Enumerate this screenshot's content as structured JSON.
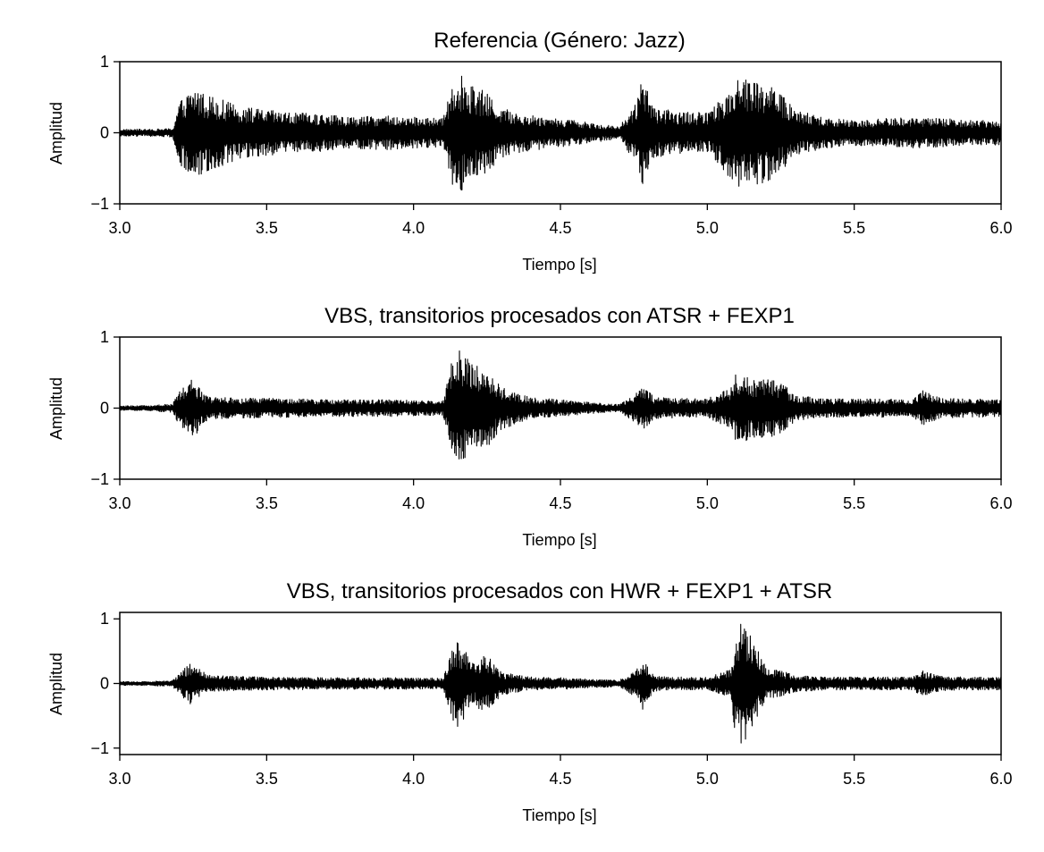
{
  "figure": {
    "background": "#ffffff",
    "line_color": "#000000"
  },
  "chart_data": [
    {
      "type": "line",
      "title": "Referencia (Género: Jazz)",
      "xlabel": "Tiempo [s]",
      "ylabel": "Amplitud",
      "xlim": [
        3.0,
        6.0
      ],
      "ylim": [
        -1,
        1
      ],
      "xticks": [
        "3.0",
        "3.5",
        "4.0",
        "4.5",
        "5.0",
        "5.5",
        "6.0"
      ],
      "yticks": [
        "1",
        "0",
        "−1"
      ],
      "ytick_values": [
        1,
        0,
        -1
      ],
      "grid": false,
      "series": [
        {
          "x": [
            3.0,
            3.1,
            3.18,
            3.2,
            3.25,
            3.3,
            3.4,
            3.5,
            3.6,
            3.7,
            3.8,
            3.9,
            4.0,
            4.1,
            4.13,
            4.15,
            4.2,
            4.25,
            4.3,
            4.4,
            4.5,
            4.6,
            4.7,
            4.76,
            4.78,
            4.82,
            4.9,
            5.0,
            5.08,
            5.1,
            5.15,
            5.2,
            5.25,
            5.3,
            5.4,
            5.5,
            5.6,
            5.7,
            5.8,
            5.9,
            6.0
          ],
          "envelope": [
            0.05,
            0.05,
            0.06,
            0.42,
            0.65,
            0.55,
            0.38,
            0.32,
            0.28,
            0.26,
            0.22,
            0.24,
            0.22,
            0.2,
            0.72,
            0.85,
            0.7,
            0.55,
            0.35,
            0.25,
            0.2,
            0.15,
            0.08,
            0.45,
            0.78,
            0.35,
            0.3,
            0.28,
            0.65,
            0.85,
            0.75,
            0.72,
            0.55,
            0.32,
            0.22,
            0.18,
            0.2,
            0.22,
            0.2,
            0.18,
            0.17
          ]
        }
      ]
    },
    {
      "type": "line",
      "title": "VBS, transitorios procesados con ATSR + FEXP1",
      "xlabel": "Tiempo [s]",
      "ylabel": "Amplitud",
      "xlim": [
        3.0,
        6.0
      ],
      "ylim": [
        -1,
        1
      ],
      "xticks": [
        "3.0",
        "3.5",
        "4.0",
        "4.5",
        "5.0",
        "5.5",
        "6.0"
      ],
      "yticks": [
        "1",
        "0",
        "−1"
      ],
      "ytick_values": [
        1,
        0,
        -1
      ],
      "grid": false,
      "series": [
        {
          "x": [
            3.0,
            3.1,
            3.18,
            3.2,
            3.25,
            3.3,
            3.4,
            3.5,
            3.6,
            3.7,
            3.8,
            3.9,
            4.0,
            4.1,
            4.13,
            4.15,
            4.2,
            4.25,
            4.3,
            4.4,
            4.5,
            4.6,
            4.7,
            4.76,
            4.78,
            4.82,
            4.9,
            5.0,
            5.08,
            5.1,
            5.15,
            5.2,
            5.25,
            5.3,
            5.4,
            5.5,
            5.6,
            5.7,
            5.73,
            5.8,
            5.9,
            6.0
          ],
          "envelope": [
            0.03,
            0.04,
            0.06,
            0.22,
            0.42,
            0.16,
            0.14,
            0.14,
            0.13,
            0.12,
            0.12,
            0.12,
            0.11,
            0.1,
            0.68,
            0.85,
            0.62,
            0.55,
            0.3,
            0.15,
            0.12,
            0.08,
            0.05,
            0.22,
            0.32,
            0.15,
            0.14,
            0.13,
            0.3,
            0.55,
            0.42,
            0.42,
            0.38,
            0.18,
            0.13,
            0.13,
            0.13,
            0.12,
            0.25,
            0.14,
            0.13,
            0.12
          ]
        }
      ]
    },
    {
      "type": "line",
      "title": "VBS, transitorios procesados con HWR + FEXP1 + ATSR",
      "xlabel": "Tiempo [s]",
      "ylabel": "Amplitud",
      "xlim": [
        3.0,
        6.0
      ],
      "ylim": [
        -1.1,
        1.1
      ],
      "xticks": [
        "3.0",
        "3.5",
        "4.0",
        "4.5",
        "5.0",
        "5.5",
        "6.0"
      ],
      "yticks": [
        "1",
        "0",
        "−1"
      ],
      "ytick_values": [
        1,
        0,
        -1
      ],
      "grid": false,
      "series": [
        {
          "x": [
            3.0,
            3.1,
            3.18,
            3.2,
            3.24,
            3.3,
            3.4,
            3.5,
            3.6,
            3.7,
            3.8,
            3.9,
            4.0,
            4.1,
            4.13,
            4.15,
            4.2,
            4.25,
            4.3,
            4.4,
            4.5,
            4.6,
            4.7,
            4.76,
            4.78,
            4.82,
            4.9,
            5.0,
            5.08,
            5.1,
            5.13,
            5.2,
            5.25,
            5.3,
            5.4,
            5.5,
            5.6,
            5.7,
            5.73,
            5.8,
            5.9,
            6.0
          ],
          "envelope": [
            0.03,
            0.03,
            0.05,
            0.15,
            0.32,
            0.13,
            0.11,
            0.1,
            0.1,
            0.09,
            0.09,
            0.09,
            0.09,
            0.08,
            0.55,
            0.7,
            0.35,
            0.45,
            0.18,
            0.1,
            0.09,
            0.07,
            0.05,
            0.22,
            0.4,
            0.12,
            0.1,
            0.1,
            0.22,
            0.98,
            0.9,
            0.25,
            0.2,
            0.13,
            0.1,
            0.1,
            0.1,
            0.1,
            0.2,
            0.11,
            0.1,
            0.1
          ]
        }
      ]
    }
  ]
}
